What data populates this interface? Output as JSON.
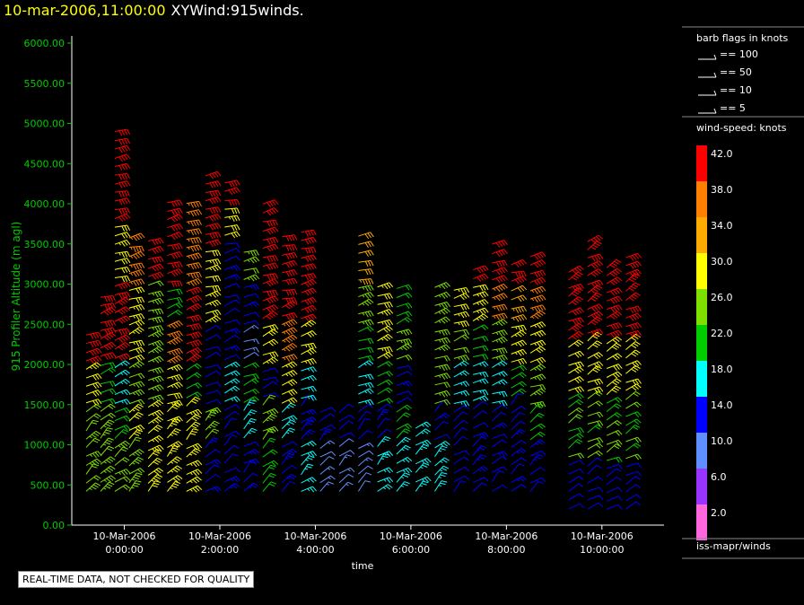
{
  "header": {
    "timestamp": "10-mar-2006,11:00:00",
    "product": "XYWind:915winds."
  },
  "notice": "REAL-TIME DATA, NOT CHECKED FOR QUALITY",
  "legend": {
    "barb_title": "barb flags in knots",
    "barb_items": [
      "== 100",
      "== 50",
      "== 10",
      "== 5"
    ],
    "speed_title": "wind-speed: knots",
    "speed_bins": [
      {
        "label": "42.0",
        "color": "#ff0000"
      },
      {
        "label": "38.0",
        "color": "#ff7f00"
      },
      {
        "label": "34.0",
        "color": "#ffaa00"
      },
      {
        "label": "30.0",
        "color": "#ffff00"
      },
      {
        "label": "26.0",
        "color": "#7fe000"
      },
      {
        "label": "22.0",
        "color": "#00cc00"
      },
      {
        "label": "18.0",
        "color": "#00ffff"
      },
      {
        "label": "14.0",
        "color": "#0000ff"
      },
      {
        "label": "10.0",
        "color": "#5f8fff"
      },
      {
        "label": "6.0",
        "color": "#9933ff"
      },
      {
        "label": "2.0",
        "color": "#ff66dd"
      }
    ],
    "source": "iss-mapr/winds"
  },
  "chart_data": {
    "type": "wind-barb profile",
    "xlabel": "time",
    "ylabel": "915 Profiler Altitude (m agl)",
    "ylim": [
      0,
      6000
    ],
    "yticks": [
      "0.00",
      "500.00",
      "1000.00",
      "1500.00",
      "2000.00",
      "2500.00",
      "3000.00",
      "3500.00",
      "4000.00",
      "4500.00",
      "5000.00",
      "5500.00",
      "6000.00"
    ],
    "xticks": [
      {
        "date": "10-Mar-2006",
        "time": "0:00:00",
        "h": 0
      },
      {
        "date": "10-Mar-2006",
        "time": "2:00:00",
        "h": 2
      },
      {
        "date": "10-Mar-2006",
        "time": "4:00:00",
        "h": 4
      },
      {
        "date": "10-Mar-2006",
        "time": "6:00:00",
        "h": 6
      },
      {
        "date": "10-Mar-2006",
        "time": "8:00:00",
        "h": 8
      },
      {
        "date": "10-Mar-2006",
        "time": "10:00:00",
        "h": 10
      }
    ],
    "xlim_hours": [
      -1.1,
      11.3
    ],
    "profile_times_hours": [
      -0.8,
      -0.5,
      -0.2,
      0.1,
      0.5,
      0.9,
      1.3,
      1.7,
      2.1,
      2.5,
      2.9,
      3.3,
      3.7,
      4.1,
      4.5,
      4.9,
      5.3,
      5.7,
      6.1,
      6.5,
      6.9,
      7.3,
      7.7,
      8.1,
      8.5,
      8.9,
      9.3,
      9.7,
      10.1,
      10.5
    ],
    "profiles": [
      {
        "t": -0.8,
        "top": 2400,
        "spd": [
          [
            400,
            26
          ],
          [
            1000,
            26
          ],
          [
            1500,
            30
          ],
          [
            2000,
            42
          ]
        ]
      },
      {
        "t": -0.5,
        "top": 2900,
        "spd": [
          [
            400,
            26
          ],
          [
            1000,
            26
          ],
          [
            1500,
            22
          ],
          [
            2000,
            42
          ],
          [
            2800,
            42
          ]
        ]
      },
      {
        "t": -0.2,
        "top": 4900,
        "spd": [
          [
            400,
            26
          ],
          [
            1000,
            22
          ],
          [
            1500,
            18
          ],
          [
            2000,
            42
          ],
          [
            3000,
            30
          ],
          [
            3800,
            42
          ]
        ]
      },
      {
        "t": 0.1,
        "top": 3600,
        "spd": [
          [
            400,
            26
          ],
          [
            1000,
            30
          ],
          [
            1500,
            26
          ],
          [
            2000,
            30
          ],
          [
            3000,
            38
          ]
        ]
      },
      {
        "t": 0.5,
        "top": 3600,
        "spd": [
          [
            400,
            30
          ],
          [
            1000,
            30
          ],
          [
            1500,
            26
          ],
          [
            2000,
            26
          ],
          [
            3000,
            42
          ]
        ]
      },
      {
        "t": 0.9,
        "top": 4100,
        "spd": [
          [
            400,
            30
          ],
          [
            1000,
            30
          ],
          [
            1500,
            30
          ],
          [
            2000,
            38
          ],
          [
            2500,
            22
          ],
          [
            3000,
            42
          ]
        ]
      },
      {
        "t": 1.3,
        "top": 4100,
        "spd": [
          [
            400,
            30
          ],
          [
            1000,
            30
          ],
          [
            1500,
            22
          ],
          [
            2000,
            42
          ],
          [
            3000,
            38
          ]
        ]
      },
      {
        "t": 1.7,
        "top": 4400,
        "spd": [
          [
            400,
            14
          ],
          [
            1000,
            26
          ],
          [
            1500,
            14
          ],
          [
            2500,
            30
          ],
          [
            3500,
            42
          ]
        ]
      },
      {
        "t": 2.1,
        "top": 4300,
        "spd": [
          [
            400,
            14
          ],
          [
            1000,
            14
          ],
          [
            1500,
            18
          ],
          [
            2000,
            14
          ],
          [
            3500,
            30
          ],
          [
            4000,
            42
          ]
        ]
      },
      {
        "t": 2.5,
        "top": 3500,
        "spd": [
          [
            400,
            14
          ],
          [
            1000,
            18
          ],
          [
            1500,
            22
          ],
          [
            2000,
            10
          ],
          [
            2500,
            14
          ],
          [
            3000,
            26
          ]
        ]
      },
      {
        "t": 2.9,
        "top": 4000,
        "spd": [
          [
            400,
            22
          ],
          [
            1000,
            26
          ],
          [
            1500,
            14
          ],
          [
            2000,
            30
          ],
          [
            2500,
            42
          ],
          [
            3500,
            42
          ]
        ]
      },
      {
        "t": 3.3,
        "top": 3600,
        "spd": [
          [
            400,
            14
          ],
          [
            1000,
            18
          ],
          [
            1500,
            30
          ],
          [
            2000,
            38
          ],
          [
            2500,
            42
          ]
        ]
      },
      {
        "t": 3.7,
        "top": 3700,
        "spd": [
          [
            400,
            18
          ],
          [
            1000,
            14
          ],
          [
            1500,
            18
          ],
          [
            2000,
            30
          ],
          [
            2500,
            42
          ]
        ]
      },
      {
        "t": 4.1,
        "top": 1500,
        "spd": [
          [
            400,
            10
          ],
          [
            1000,
            14
          ],
          [
            1500,
            18
          ]
        ]
      },
      {
        "t": 4.5,
        "top": 1500,
        "spd": [
          [
            400,
            10
          ],
          [
            1000,
            14
          ],
          [
            1500,
            6
          ]
        ]
      },
      {
        "t": 4.9,
        "top": 3700,
        "spd": [
          [
            400,
            10
          ],
          [
            1000,
            14
          ],
          [
            1500,
            18
          ],
          [
            2000,
            22
          ],
          [
            2500,
            26
          ],
          [
            3000,
            34
          ]
        ]
      },
      {
        "t": 5.3,
        "top": 3000,
        "spd": [
          [
            400,
            18
          ],
          [
            1000,
            14
          ],
          [
            1500,
            22
          ],
          [
            2000,
            30
          ],
          [
            2500,
            30
          ],
          [
            3000,
            34
          ]
        ]
      },
      {
        "t": 5.7,
        "top": 3000,
        "spd": [
          [
            400,
            18
          ],
          [
            1000,
            22
          ],
          [
            1500,
            14
          ],
          [
            2000,
            26
          ],
          [
            2500,
            22
          ],
          [
            3000,
            18
          ]
        ]
      },
      {
        "t": 6.1,
        "top": 1300,
        "spd": [
          [
            400,
            18
          ],
          [
            1000,
            18
          ],
          [
            1300,
            14
          ]
        ]
      },
      {
        "t": 6.5,
        "top": 3000,
        "spd": [
          [
            400,
            18
          ],
          [
            1000,
            14
          ],
          [
            1500,
            26
          ],
          [
            2500,
            26
          ],
          [
            3000,
            18
          ]
        ]
      },
      {
        "t": 6.9,
        "top": 3000,
        "spd": [
          [
            400,
            14
          ],
          [
            1000,
            14
          ],
          [
            1500,
            18
          ],
          [
            2000,
            26
          ],
          [
            2500,
            30
          ],
          [
            3000,
            38
          ]
        ]
      },
      {
        "t": 7.3,
        "top": 3200,
        "spd": [
          [
            400,
            14
          ],
          [
            1000,
            14
          ],
          [
            1500,
            18
          ],
          [
            2000,
            22
          ],
          [
            2500,
            30
          ],
          [
            3000,
            42
          ]
        ]
      },
      {
        "t": 7.7,
        "top": 3600,
        "spd": [
          [
            400,
            14
          ],
          [
            1000,
            14
          ],
          [
            1500,
            18
          ],
          [
            2000,
            26
          ],
          [
            2500,
            38
          ],
          [
            3000,
            42
          ]
        ]
      },
      {
        "t": 8.1,
        "top": 3300,
        "spd": [
          [
            400,
            14
          ],
          [
            1000,
            14
          ],
          [
            1500,
            22
          ],
          [
            2000,
            30
          ],
          [
            2500,
            34
          ],
          [
            3000,
            42
          ]
        ]
      },
      {
        "t": 8.5,
        "top": 3400,
        "spd": [
          [
            400,
            14
          ],
          [
            1000,
            22
          ],
          [
            1500,
            26
          ],
          [
            2000,
            30
          ],
          [
            2500,
            38
          ],
          [
            3000,
            42
          ]
        ]
      }
    ]
  }
}
